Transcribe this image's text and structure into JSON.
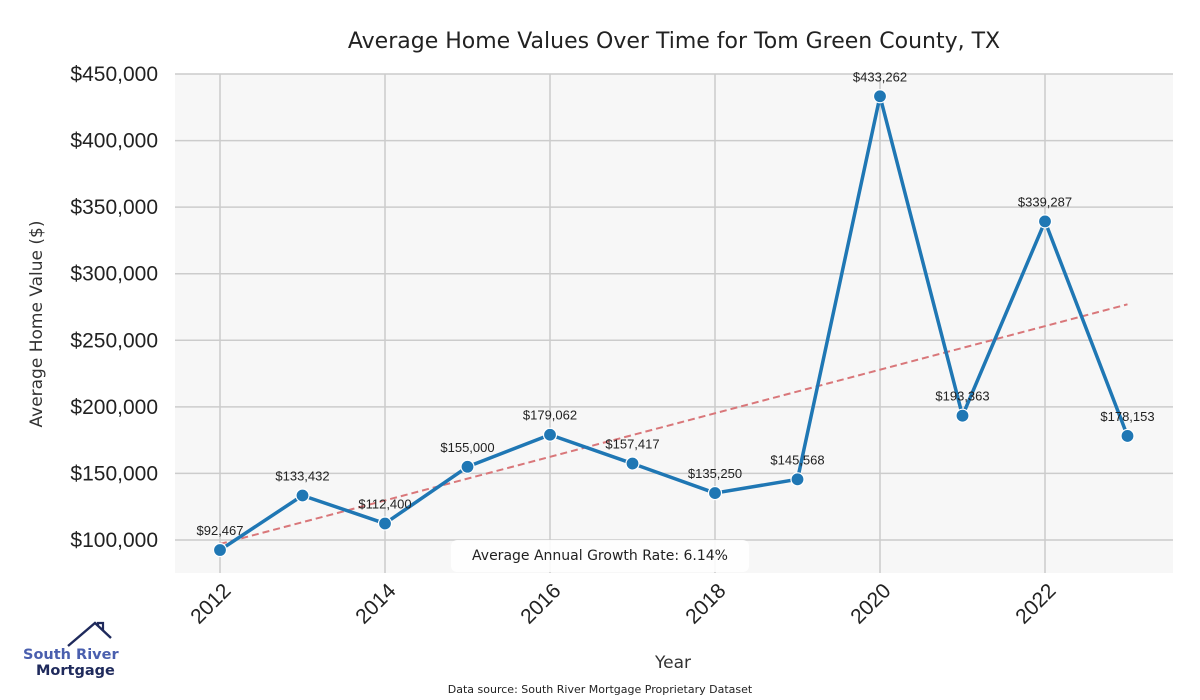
{
  "chart_data": {
    "type": "line",
    "title": "Average Home Values Over Time for Tom Green County, TX",
    "xlabel": "Year",
    "ylabel": "Average Home Value ($)",
    "x": [
      2012,
      2013,
      2014,
      2015,
      2016,
      2017,
      2018,
      2019,
      2020,
      2021,
      2022,
      2023
    ],
    "series": [
      {
        "name": "Average Home Value",
        "values": [
          92467,
          133432,
          112400,
          155000,
          179062,
          157417,
          135250,
          145568,
          433262,
          193363,
          339287,
          178153
        ],
        "labels": [
          "$92,467",
          "$133,432",
          "$112,400",
          "$155,000",
          "$179,062",
          "$157,417",
          "$135,250",
          "$145,568",
          "$433,262",
          "$193,363",
          "$339,287",
          "$178,153"
        ],
        "color": "#1f77b4"
      }
    ],
    "trendline": {
      "start": [
        2012,
        97000
      ],
      "end": [
        2023,
        277000
      ],
      "color": "#d9777a",
      "style": "dashed"
    },
    "xticks": [
      2012,
      2014,
      2016,
      2018,
      2020,
      2022
    ],
    "xtick_labels": [
      "2012",
      "2014",
      "2016",
      "2018",
      "2020",
      "2022"
    ],
    "yticks": [
      100000,
      150000,
      200000,
      250000,
      300000,
      350000,
      400000,
      450000
    ],
    "ytick_labels": [
      "$100,000",
      "$150,000",
      "$200,000",
      "$250,000",
      "$300,000",
      "$350,000",
      "$400,000",
      "$450,000"
    ],
    "xlim": [
      2011.45,
      2023.55
    ],
    "ylim": [
      75000,
      450000
    ],
    "grid": true,
    "annotation": "Average Annual Growth Rate: 6.14%",
    "source": "Data source: South River Mortgage Proprietary Dataset",
    "colors": {
      "plot_bg": "#f7f7f7",
      "grid": "#cccccc"
    }
  },
  "logo": {
    "line1": "South River",
    "line2": "Mortgage"
  }
}
